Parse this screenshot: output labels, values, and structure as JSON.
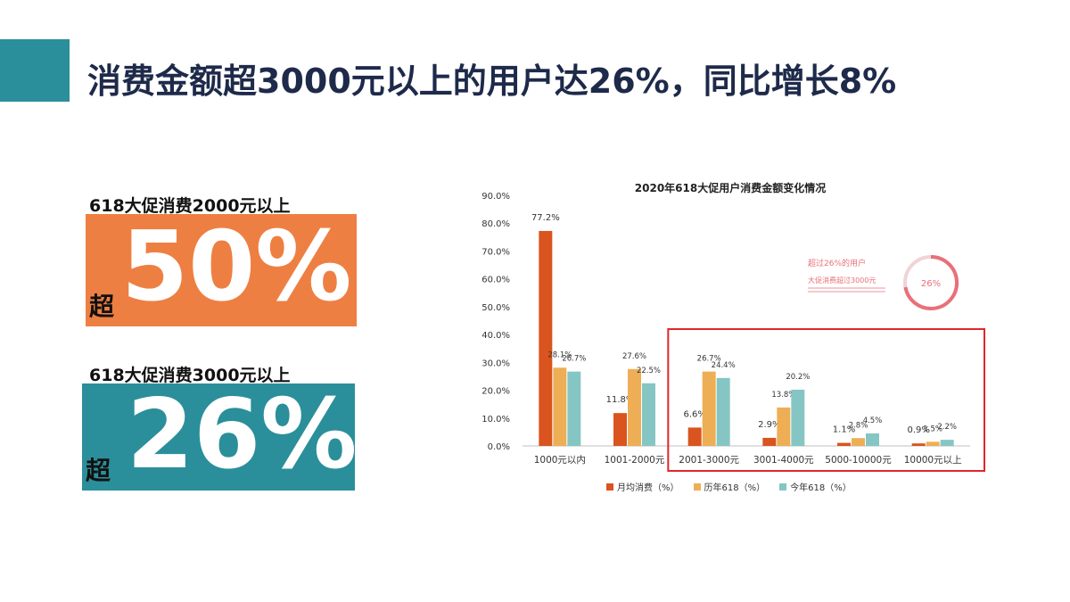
{
  "slide": {
    "title": "消费金额超3000元以上的用户达26%，同比增长8%"
  },
  "stats": [
    {
      "label": "618大促消费2000元以上",
      "prefix": "超",
      "value": "50%",
      "color": "#ee7f42"
    },
    {
      "label": "618大促消费3000元以上",
      "prefix": "超",
      "value": "26%",
      "color": "#2a8f9a"
    }
  ],
  "chart_data": {
    "type": "bar",
    "title": "2020年618大促用户消费金额变化情况",
    "categories": [
      "1000元以内",
      "1001-2000元",
      "2001-3000元",
      "3001-4000元",
      "5000-10000元",
      "10000元以上"
    ],
    "series": [
      {
        "name": "月均消费（%）",
        "color": "#d9541e",
        "values": [
          77.2,
          11.8,
          6.6,
          2.9,
          1.1,
          0.9
        ],
        "labels": [
          "77.2%",
          "11.8%",
          "6.6%",
          "2.9%",
          "1.1%",
          "0.9%"
        ]
      },
      {
        "name": "历年618（%）",
        "color": "#eeae55",
        "values": [
          28.1,
          27.6,
          26.7,
          13.8,
          2.8,
          1.5
        ],
        "labels": [
          "28.1%",
          "27.6%",
          "26.7%",
          "13.8%",
          "2.8%",
          "1.5%"
        ]
      },
      {
        "name": "今年618（%）",
        "color": "#85c6c4",
        "values": [
          26.7,
          22.5,
          24.4,
          20.2,
          4.5,
          2.2
        ],
        "labels": [
          "26.7%",
          "22.5%",
          "24.4%",
          "20.2%",
          "4.5%",
          "2.2%"
        ]
      }
    ],
    "y_ticks": [
      "0.0%",
      "10.0%",
      "20.0%",
      "30.0%",
      "40.0%",
      "50.0%",
      "60.0%",
      "70.0%",
      "80.0%",
      "90.0%"
    ],
    "ylim": [
      0,
      90
    ],
    "grid": false,
    "legend_position": "bottom",
    "highlight": {
      "from_category": 2,
      "to_category": 5,
      "color": "#e0262b"
    },
    "annotation": {
      "line1": "超过26%的用户",
      "line2": "大促消费超过3000元",
      "badge": "26%",
      "color": "#e8707a"
    }
  }
}
